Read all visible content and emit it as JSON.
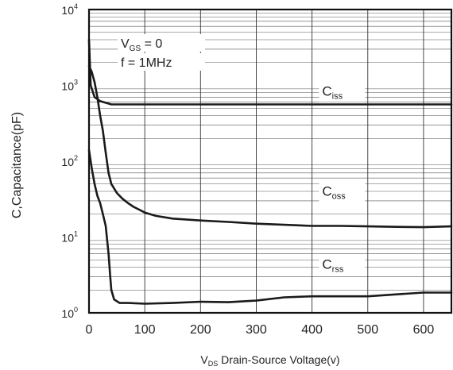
{
  "chart_data": {
    "type": "line",
    "xlabel_sub": "DS",
    "xlabel_prefix": "V",
    "xlabel_rest": " Drain-Source Voltage(v)",
    "ylabel": "C,Capacitance(pF)",
    "xlim": [
      0,
      650
    ],
    "ylim": [
      1,
      10000
    ],
    "y_scale": "log",
    "grid": true,
    "x_ticks": [
      0,
      100,
      200,
      300,
      400,
      500,
      600
    ],
    "y_ticks": [
      {
        "value": 1,
        "base": "10",
        "exp": "0"
      },
      {
        "value": 10,
        "base": "10",
        "exp": "1"
      },
      {
        "value": 100,
        "base": "10",
        "exp": "2"
      },
      {
        "value": 1000,
        "base": "10",
        "exp": "3"
      },
      {
        "value": 10000,
        "base": "10",
        "exp": "4"
      }
    ],
    "conditions": [
      {
        "main": "V",
        "sub": "GS",
        "rest": " = 0"
      },
      {
        "main": "f = 1MHz",
        "sub": "",
        "rest": ""
      }
    ],
    "series": [
      {
        "name": "Ciss",
        "label_main": "C",
        "label_sub": "iss",
        "label_at": [
          575,
          730
        ],
        "points": [
          [
            0,
            4000
          ],
          [
            3,
            1000
          ],
          [
            10,
            700
          ],
          [
            20,
            620
          ],
          [
            40,
            560
          ],
          [
            100,
            560
          ],
          [
            300,
            560
          ],
          [
            500,
            560
          ],
          [
            650,
            560
          ]
        ]
      },
      {
        "name": "Coss",
        "label_main": "C",
        "label_sub": "oss",
        "label_at": [
          575,
          35
        ],
        "points": [
          [
            0,
            1800
          ],
          [
            5,
            1500
          ],
          [
            10,
            1100
          ],
          [
            15,
            700
          ],
          [
            20,
            400
          ],
          [
            25,
            250
          ],
          [
            30,
            130
          ],
          [
            35,
            70
          ],
          [
            40,
            50
          ],
          [
            50,
            38
          ],
          [
            60,
            32
          ],
          [
            70,
            28
          ],
          [
            80,
            25
          ],
          [
            90,
            23
          ],
          [
            100,
            21
          ],
          [
            120,
            19
          ],
          [
            150,
            17.5
          ],
          [
            200,
            16.5
          ],
          [
            250,
            15.8
          ],
          [
            300,
            15
          ],
          [
            350,
            14.5
          ],
          [
            400,
            14
          ],
          [
            450,
            14
          ],
          [
            500,
            13.8
          ],
          [
            550,
            13.6
          ],
          [
            600,
            13.5
          ],
          [
            650,
            13.8
          ]
        ]
      },
      {
        "name": "Crss",
        "label_main": "C",
        "label_sub": "rss",
        "label_at": [
          575,
          3.8
        ],
        "points": [
          [
            0,
            140
          ],
          [
            5,
            80
          ],
          [
            10,
            50
          ],
          [
            15,
            35
          ],
          [
            20,
            28
          ],
          [
            25,
            20
          ],
          [
            30,
            14
          ],
          [
            35,
            6
          ],
          [
            38,
            3
          ],
          [
            40,
            2
          ],
          [
            45,
            1.5
          ],
          [
            55,
            1.35
          ],
          [
            70,
            1.35
          ],
          [
            100,
            1.32
          ],
          [
            150,
            1.35
          ],
          [
            200,
            1.4
          ],
          [
            250,
            1.38
          ],
          [
            300,
            1.45
          ],
          [
            350,
            1.6
          ],
          [
            400,
            1.65
          ],
          [
            450,
            1.65
          ],
          [
            500,
            1.65
          ],
          [
            550,
            1.75
          ],
          [
            600,
            1.85
          ],
          [
            650,
            1.85
          ]
        ]
      }
    ]
  }
}
